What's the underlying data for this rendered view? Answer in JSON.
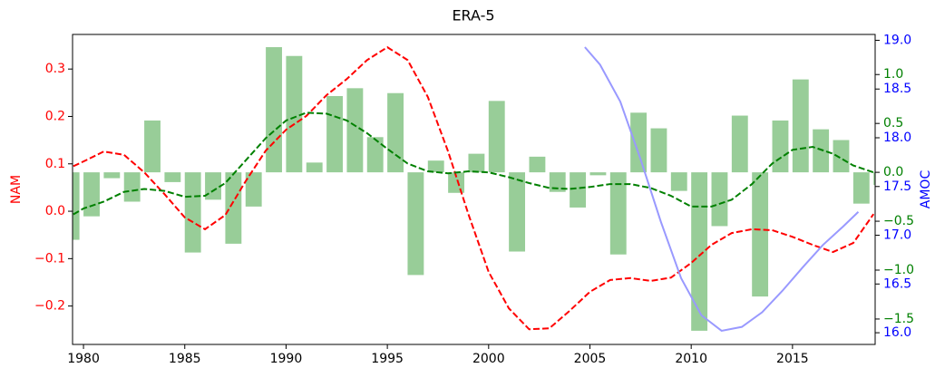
{
  "chart_data": {
    "type": "combo",
    "title": "ERA-5",
    "y_label": "NAM",
    "y3_label": "AMOC",
    "xlim": [
      1979.46,
      2019.08
    ],
    "xticks": [
      1980,
      1985,
      1990,
      1995,
      2000,
      2005,
      2010,
      2015
    ],
    "ylim": [
      -0.281,
      0.373
    ],
    "yticks": [
      {
        "value": -0.2,
        "label": "−0.2"
      },
      {
        "value": -0.1,
        "label": "−0.1"
      },
      {
        "value": 0,
        "label": "0.0"
      },
      0.1,
      0.2,
      0.3
    ],
    "y2lim": [
      -1.76,
      1.41
    ],
    "y2ticks": [
      {
        "value": -1.5,
        "label": "−1.5"
      },
      {
        "value": -1,
        "label": "−1.0"
      },
      {
        "value": -0.5,
        "label": "−0.5"
      },
      {
        "value": 0,
        "label": "0.0"
      },
      0.5,
      {
        "value": 1,
        "label": "1.0"
      }
    ],
    "y3lim": [
      15.88,
      19.06
    ],
    "y3ticks": [
      {
        "value": 16,
        "label": "16.0"
      },
      16.5,
      {
        "value": 17,
        "label": "17.0"
      },
      17.5,
      {
        "value": 18,
        "label": "18.0"
      },
      18.5,
      {
        "value": 19,
        "label": "19.0"
      }
    ],
    "y_color": "#ff0000",
    "y2_color": "#008000",
    "y3_color": "#0000ff",
    "series": [
      {
        "type": "bar",
        "axis": "y2",
        "color": "#98cd98",
        "x": [
          1979,
          1980,
          1981,
          1982,
          1983,
          1984,
          1985,
          1986,
          1987,
          1988,
          1989,
          1990,
          1991,
          1992,
          1993,
          1994,
          1995,
          1996,
          1997,
          1998,
          1999,
          2000,
          2001,
          2002,
          2003,
          2004,
          2005,
          2006,
          2007,
          2008,
          2009,
          2010,
          2011,
          2012,
          2013,
          2014,
          2015,
          2016,
          2017,
          2018,
          2019
        ],
        "values": [
          -0.69,
          -0.45,
          -0.06,
          -0.3,
          0.53,
          -0.1,
          -0.82,
          -0.28,
          -0.73,
          -0.35,
          1.28,
          1.19,
          0.1,
          0.78,
          0.86,
          0.36,
          0.81,
          -1.05,
          0.12,
          -0.21,
          0.19,
          0.73,
          -0.81,
          0.16,
          -0.2,
          -0.36,
          -0.03,
          -0.84,
          0.61,
          0.45,
          -0.19,
          -1.62,
          -0.55,
          0.58,
          -1.27,
          0.53,
          0.95,
          0.44,
          0.33,
          -0.32,
          -0.13
        ]
      },
      {
        "type": "line",
        "axis": "y",
        "color": "#ff0000",
        "style": "dashed",
        "x": [
          1979.5,
          1980,
          1981,
          1982,
          1983,
          1984,
          1985,
          1986,
          1987,
          1988,
          1989,
          1990,
          1991,
          1992,
          1993,
          1994,
          1995,
          1996,
          1997,
          1998,
          1999,
          2000,
          2001,
          2002,
          2003,
          2004,
          2005,
          2006,
          2007,
          2008,
          2009,
          2010,
          2011,
          2012,
          2013,
          2014,
          2015,
          2016,
          2017,
          2018,
          2019
        ],
        "values": [
          0.095,
          0.105,
          0.126,
          0.119,
          0.082,
          0.036,
          -0.013,
          -0.038,
          -0.008,
          0.063,
          0.128,
          0.172,
          0.201,
          0.245,
          0.279,
          0.319,
          0.346,
          0.319,
          0.241,
          0.126,
          -0.006,
          -0.128,
          -0.205,
          -0.249,
          -0.247,
          -0.21,
          -0.17,
          -0.145,
          -0.141,
          -0.147,
          -0.14,
          -0.109,
          -0.071,
          -0.046,
          -0.038,
          -0.04,
          -0.054,
          -0.071,
          -0.086,
          -0.067,
          -0.006
        ]
      },
      {
        "type": "line",
        "axis": "y2",
        "color": "#008000",
        "style": "dashed",
        "x": [
          1979.5,
          1980,
          1981,
          1982,
          1983,
          1984,
          1985,
          1986,
          1987,
          1988,
          1989,
          1990,
          1991,
          1992,
          1993,
          1994,
          1995,
          1996,
          1997,
          1998,
          1999,
          2000,
          2001,
          2002,
          2003,
          2004,
          2005,
          2006,
          2007,
          2008,
          2009,
          2010,
          2011,
          2012,
          2013,
          2014,
          2015,
          2016,
          2017,
          2018,
          2019
        ],
        "values": [
          -0.43,
          -0.37,
          -0.3,
          -0.2,
          -0.17,
          -0.19,
          -0.25,
          -0.24,
          -0.11,
          0.12,
          0.35,
          0.53,
          0.61,
          0.6,
          0.53,
          0.4,
          0.24,
          0.09,
          0.01,
          -0.01,
          0.01,
          0.0,
          -0.05,
          -0.11,
          -0.16,
          -0.17,
          -0.15,
          -0.12,
          -0.12,
          -0.16,
          -0.24,
          -0.35,
          -0.35,
          -0.28,
          -0.12,
          0.09,
          0.23,
          0.26,
          0.19,
          0.07,
          0.0
        ]
      },
      {
        "type": "line",
        "axis": "y3",
        "color": "#9999ff",
        "style": "solid",
        "x": [
          2004.75,
          2005.5,
          2006.5,
          2007.5,
          2008.5,
          2009.5,
          2010.5,
          2011.5,
          2012.5,
          2013.5,
          2014.5,
          2015.5,
          2016.5,
          2017.5,
          2018.25
        ],
        "values": [
          18.93,
          18.75,
          18.37,
          17.78,
          17.14,
          16.56,
          16.18,
          16.02,
          16.06,
          16.21,
          16.43,
          16.67,
          16.9,
          17.09,
          17.24
        ]
      }
    ]
  }
}
